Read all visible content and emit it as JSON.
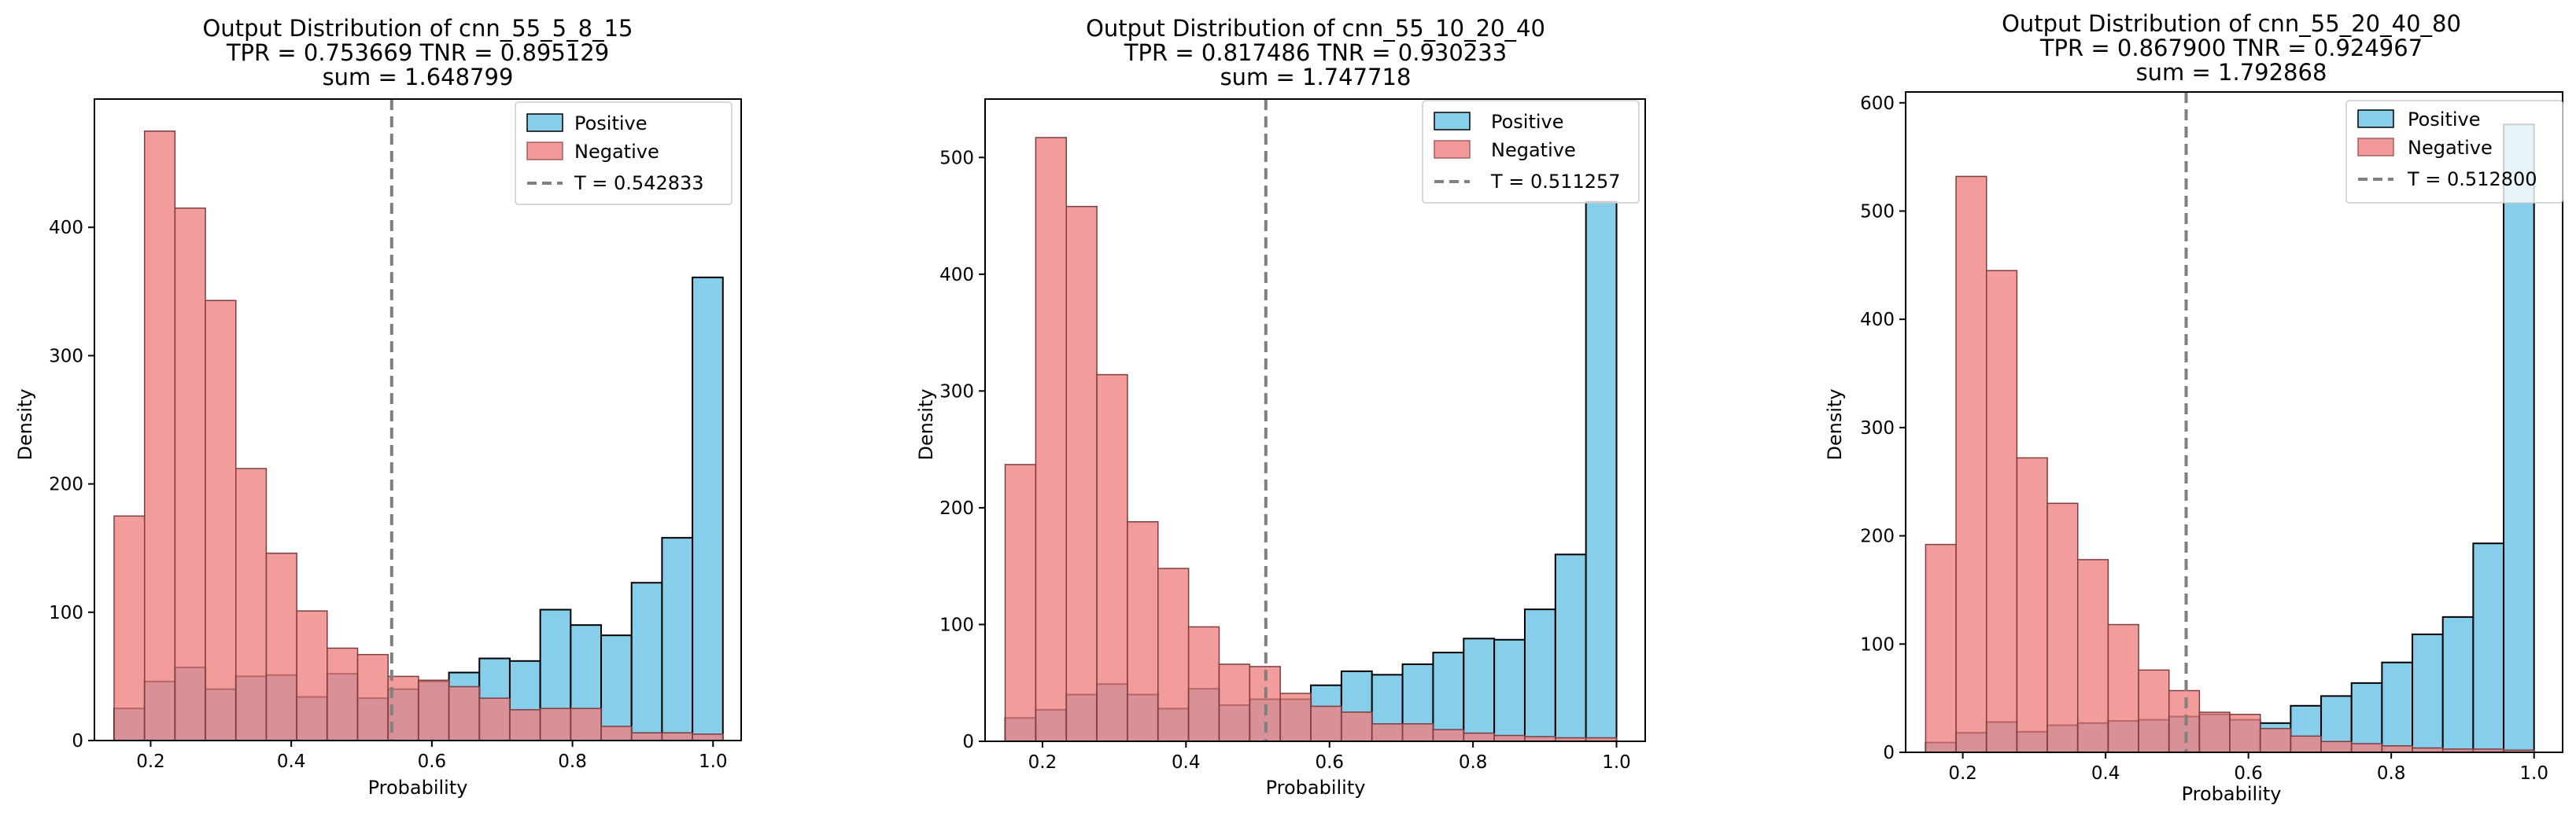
{
  "colors": {
    "positive": "#87CEEB",
    "negative": "#F08080",
    "overlap": "#8E6C7E",
    "threshold": "#808080"
  },
  "chart_data": [
    {
      "type": "histogram",
      "title": "Output Distribution of cnn_55_5_8_15",
      "subtitle1": "TPR = 0.753669 TNR = 0.895129",
      "subtitle2": "sum = 1.648799",
      "xlabel": "Probability",
      "ylabel": "Density",
      "xlim": [
        0.12,
        1.04
      ],
      "ylim": [
        0,
        500
      ],
      "xticks": [
        "0.2",
        "0.4",
        "0.6",
        "0.8",
        "1.0"
      ],
      "xtick_values": [
        0.2,
        0.4,
        0.6,
        0.8,
        1.0
      ],
      "yticks": [
        "0",
        "100",
        "200",
        "300",
        "400"
      ],
      "ytick_values": [
        0,
        100,
        200,
        300,
        400
      ],
      "legend": [
        "Positive",
        "Negative",
        "T = 0.542833"
      ],
      "threshold": 0.542833,
      "bin_start": 0.148,
      "bin_width": 0.0433,
      "series": [
        {
          "name": "Positive",
          "values": [
            25,
            46,
            57,
            40,
            50,
            51,
            34,
            52,
            33,
            40,
            46,
            53,
            64,
            62,
            102,
            90,
            82,
            123,
            158,
            361
          ]
        },
        {
          "name": "Negative",
          "values": [
            175,
            475,
            415,
            343,
            212,
            146,
            101,
            72,
            67,
            50,
            47,
            42,
            33,
            24,
            25,
            25,
            11,
            6,
            6,
            5
          ]
        }
      ]
    },
    {
      "type": "histogram",
      "title": "Output Distribution of cnn_55_10_20_40",
      "subtitle1": "TPR = 0.817486 TNR = 0.930233",
      "subtitle2": "sum = 1.747718",
      "xlabel": "Probability",
      "ylabel": "Density",
      "xlim": [
        0.12,
        1.04
      ],
      "ylim": [
        0,
        550
      ],
      "xticks": [
        "0.2",
        "0.4",
        "0.6",
        "0.8",
        "1.0"
      ],
      "xtick_values": [
        0.2,
        0.4,
        0.6,
        0.8,
        1.0
      ],
      "yticks": [
        "0",
        "100",
        "200",
        "300",
        "400",
        "500"
      ],
      "ytick_values": [
        0,
        100,
        200,
        300,
        400,
        500
      ],
      "legend": [
        "Positive",
        "Negative",
        "T = 0.511257"
      ],
      "threshold": 0.511257,
      "bin_start": 0.148,
      "bin_width": 0.0426,
      "series": [
        {
          "name": "Positive",
          "values": [
            20,
            27,
            40,
            49,
            40,
            28,
            45,
            31,
            36,
            36,
            48,
            60,
            57,
            66,
            76,
            88,
            87,
            113,
            160,
            462
          ]
        },
        {
          "name": "Negative",
          "values": [
            237,
            517,
            458,
            314,
            188,
            148,
            98,
            66,
            64,
            41,
            30,
            25,
            15,
            15,
            10,
            7,
            5,
            4,
            3,
            3
          ]
        }
      ]
    },
    {
      "type": "histogram",
      "title": "Output Distribution of cnn_55_20_40_80",
      "subtitle1": "TPR = 0.867900 TNR = 0.924967",
      "subtitle2": "sum = 1.792868",
      "xlabel": "Probability",
      "ylabel": "Density",
      "xlim": [
        0.12,
        1.04
      ],
      "ylim": [
        0,
        610
      ],
      "xticks": [
        "0.2",
        "0.4",
        "0.6",
        "0.8",
        "1.0"
      ],
      "xtick_values": [
        0.2,
        0.4,
        0.6,
        0.8,
        1.0
      ],
      "yticks": [
        "0",
        "100",
        "200",
        "300",
        "400",
        "500",
        "600"
      ],
      "ytick_values": [
        0,
        100,
        200,
        300,
        400,
        500,
        600
      ],
      "legend": [
        "Positive",
        "Negative",
        "T = 0.512800"
      ],
      "threshold": 0.5128,
      "bin_start": 0.148,
      "bin_width": 0.0426,
      "series": [
        {
          "name": "Positive",
          "values": [
            9,
            18,
            28,
            19,
            25,
            27,
            29,
            30,
            33,
            35,
            30,
            27,
            43,
            52,
            64,
            83,
            109,
            125,
            193,
            580
          ]
        },
        {
          "name": "Negative",
          "values": [
            192,
            532,
            445,
            272,
            230,
            178,
            118,
            76,
            57,
            37,
            35,
            22,
            15,
            10,
            8,
            6,
            4,
            3,
            3,
            2
          ]
        }
      ]
    }
  ]
}
